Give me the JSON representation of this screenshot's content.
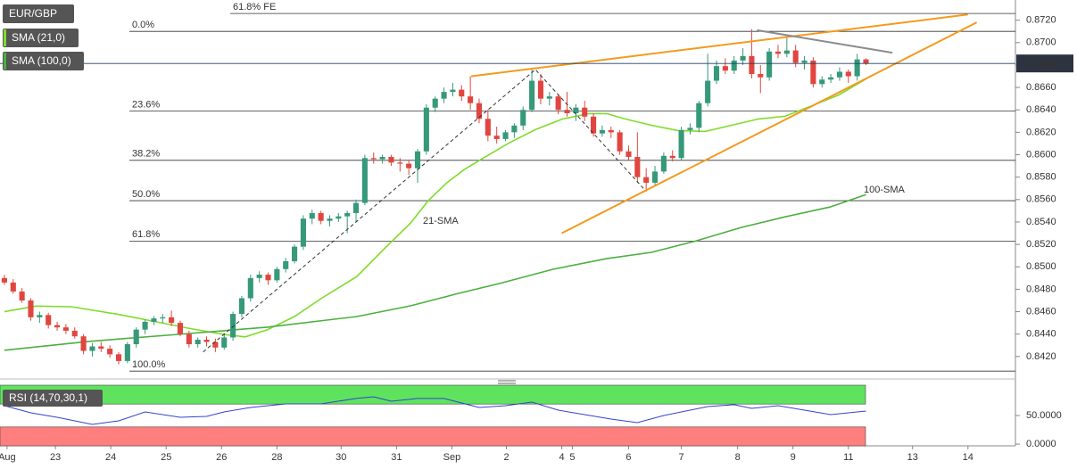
{
  "chart_data": [
    {
      "type": "candlestick",
      "title": "EUR/GBP",
      "x": [
        0,
        1,
        2,
        3,
        4,
        5,
        6,
        7,
        8,
        9,
        10,
        11,
        12,
        13,
        14,
        15,
        16,
        17,
        18,
        19,
        20,
        21,
        22,
        23,
        24,
        25,
        26,
        27,
        28,
        29,
        30,
        31,
        32,
        33,
        34,
        35,
        36,
        37,
        38,
        39,
        40,
        41,
        42,
        43,
        44,
        45,
        46,
        47,
        48,
        49,
        50,
        51,
        52,
        53,
        54,
        55,
        56,
        57,
        58,
        59,
        60,
        61,
        62,
        63,
        64,
        65,
        66,
        67,
        68,
        69,
        70,
        71,
        72,
        73,
        74,
        75,
        76,
        77,
        78,
        79,
        80,
        81,
        82,
        83,
        84,
        85,
        86,
        87,
        88,
        89,
        90,
        91,
        92,
        93,
        94,
        95,
        96,
        97,
        98
      ],
      "open": [
        0.849,
        0.8486,
        0.8478,
        0.847,
        0.8455,
        0.8457,
        0.8448,
        0.8446,
        0.8443,
        0.8438,
        0.8425,
        0.8429,
        0.8427,
        0.8422,
        0.8416,
        0.8431,
        0.8444,
        0.8451,
        0.8454,
        0.8455,
        0.845,
        0.844,
        0.8431,
        0.8435,
        0.8433,
        0.8428,
        0.8437,
        0.8458,
        0.8472,
        0.849,
        0.8493,
        0.8488,
        0.8498,
        0.8505,
        0.8518,
        0.8543,
        0.8548,
        0.8541,
        0.8543,
        0.8545,
        0.8548,
        0.8557,
        0.8597,
        0.8596,
        0.8598,
        0.8593,
        0.8592,
        0.8588,
        0.8603,
        0.8642,
        0.865,
        0.8656,
        0.8658,
        0.8652,
        0.8646,
        0.8632,
        0.8617,
        0.8614,
        0.862,
        0.8626,
        0.864,
        0.8666,
        0.865,
        0.8652,
        0.864,
        0.8637,
        0.8642,
        0.8634,
        0.8619,
        0.8622,
        0.862,
        0.8603,
        0.8598,
        0.858,
        0.8575,
        0.8585,
        0.8599,
        0.8597,
        0.8622,
        0.8624,
        0.8646,
        0.8666,
        0.8679,
        0.8675,
        0.8684,
        0.8688,
        0.8672,
        0.8669,
        0.8692,
        0.869,
        0.8693,
        0.8682,
        0.8684,
        0.8663,
        0.8667,
        0.8669,
        0.8674,
        0.867,
        0.8685
      ],
      "high": [
        0.8493,
        0.8489,
        0.8481,
        0.8472,
        0.846,
        0.8459,
        0.8451,
        0.8449,
        0.8446,
        0.844,
        0.8432,
        0.8433,
        0.843,
        0.8424,
        0.8433,
        0.8446,
        0.8453,
        0.8456,
        0.8458,
        0.8461,
        0.8452,
        0.8443,
        0.8437,
        0.8438,
        0.8436,
        0.844,
        0.846,
        0.8474,
        0.8493,
        0.8496,
        0.8495,
        0.85,
        0.8508,
        0.852,
        0.8546,
        0.8551,
        0.855,
        0.8546,
        0.8548,
        0.855,
        0.856,
        0.86,
        0.8602,
        0.86,
        0.86,
        0.8597,
        0.8595,
        0.8605,
        0.8645,
        0.8652,
        0.866,
        0.8664,
        0.8662,
        0.867,
        0.865,
        0.864,
        0.8625,
        0.8622,
        0.8628,
        0.8643,
        0.8676,
        0.8672,
        0.8656,
        0.8654,
        0.8656,
        0.8645,
        0.8648,
        0.8637,
        0.8626,
        0.8625,
        0.8622,
        0.8608,
        0.862,
        0.8588,
        0.859,
        0.8602,
        0.8604,
        0.8625,
        0.8628,
        0.8648,
        0.869,
        0.8684,
        0.8686,
        0.8688,
        0.8695,
        0.8712,
        0.868,
        0.8695,
        0.8698,
        0.8704,
        0.8698,
        0.8688,
        0.8687,
        0.867,
        0.8672,
        0.8678,
        0.8676,
        0.869,
        0.8686
      ],
      "low": [
        0.8484,
        0.8476,
        0.8468,
        0.8452,
        0.845,
        0.8445,
        0.8443,
        0.844,
        0.8436,
        0.8422,
        0.842,
        0.8424,
        0.8419,
        0.8413,
        0.8414,
        0.8428,
        0.844,
        0.8448,
        0.845,
        0.8447,
        0.8438,
        0.8428,
        0.8428,
        0.8429,
        0.8424,
        0.8426,
        0.8434,
        0.8455,
        0.8469,
        0.8486,
        0.8484,
        0.8486,
        0.8495,
        0.8503,
        0.8515,
        0.8538,
        0.8538,
        0.8536,
        0.854,
        0.853,
        0.854,
        0.8555,
        0.8592,
        0.8592,
        0.859,
        0.8585,
        0.8582,
        0.8575,
        0.86,
        0.8638,
        0.8646,
        0.8652,
        0.8648,
        0.864,
        0.8628,
        0.8612,
        0.861,
        0.8612,
        0.8615,
        0.8622,
        0.8638,
        0.8645,
        0.8644,
        0.8636,
        0.8634,
        0.863,
        0.863,
        0.8616,
        0.8616,
        0.8615,
        0.86,
        0.8595,
        0.8575,
        0.8567,
        0.8572,
        0.8583,
        0.8594,
        0.8595,
        0.8618,
        0.862,
        0.8643,
        0.8663,
        0.8672,
        0.8672,
        0.868,
        0.8668,
        0.8655,
        0.8666,
        0.8686,
        0.8687,
        0.8678,
        0.8676,
        0.866,
        0.866,
        0.8664,
        0.8666,
        0.8664,
        0.8666,
        0.868
      ],
      "close": [
        0.8486,
        0.8478,
        0.847,
        0.8455,
        0.8457,
        0.8448,
        0.8446,
        0.8443,
        0.8438,
        0.8425,
        0.8429,
        0.8427,
        0.8422,
        0.8416,
        0.8431,
        0.8444,
        0.8451,
        0.8454,
        0.8455,
        0.845,
        0.844,
        0.8431,
        0.8435,
        0.8433,
        0.8428,
        0.8437,
        0.8458,
        0.8472,
        0.849,
        0.8493,
        0.8488,
        0.8498,
        0.8505,
        0.8518,
        0.8543,
        0.8548,
        0.8541,
        0.8543,
        0.8545,
        0.8548,
        0.8557,
        0.8597,
        0.8596,
        0.8598,
        0.8593,
        0.8592,
        0.8588,
        0.8603,
        0.8642,
        0.865,
        0.8656,
        0.8658,
        0.8652,
        0.8646,
        0.8632,
        0.8617,
        0.8614,
        0.862,
        0.8626,
        0.864,
        0.8666,
        0.865,
        0.8652,
        0.864,
        0.8637,
        0.8642,
        0.8634,
        0.8619,
        0.8622,
        0.862,
        0.8603,
        0.8598,
        0.858,
        0.8575,
        0.8585,
        0.8599,
        0.8597,
        0.8622,
        0.8624,
        0.8646,
        0.8666,
        0.8679,
        0.8675,
        0.8684,
        0.8688,
        0.8672,
        0.8669,
        0.8692,
        0.869,
        0.8693,
        0.8682,
        0.8684,
        0.8663,
        0.8667,
        0.8669,
        0.8674,
        0.867,
        0.8685,
        0.86814
      ],
      "up_color": "#36997a",
      "down_color": "#e0463f",
      "series": [
        {
          "name": "SMA (21,0)",
          "color": "#7fdc2a",
          "x": [
            0,
            3.6,
            7.6,
            12.7,
            16.8,
            20.8,
            24.9,
            27.4,
            29.9,
            33,
            36,
            40.1,
            43.1,
            46.2,
            48.2,
            50.3,
            52.3,
            54.3,
            57.4,
            60.4,
            63.5,
            66.5,
            68.5,
            70.6,
            73.6,
            76.6,
            79.7,
            82.7,
            85.8,
            88.8,
            91.9,
            94.9,
            98
          ],
          "values": [
            0.846,
            0.8465,
            0.84644,
            0.8458,
            0.84517,
            0.84454,
            0.84398,
            0.84375,
            0.84438,
            0.84557,
            0.84716,
            0.84914,
            0.85152,
            0.8539,
            0.85589,
            0.85748,
            0.85867,
            0.85962,
            0.86105,
            0.86224,
            0.86319,
            0.86367,
            0.86367,
            0.86319,
            0.86263,
            0.86216,
            0.86208,
            0.86263,
            0.86319,
            0.86343,
            0.86438,
            0.86533,
            0.86676
          ]
        },
        {
          "name": "SMA (100,0)",
          "color": "#4caf3f",
          "x": [
            0,
            9.6,
            19.8,
            29.9,
            40.1,
            46.2,
            51.3,
            56.3,
            62.4,
            68.5,
            73.6,
            78.7,
            83.8,
            88.8,
            93.9,
            98
          ],
          "values": [
            0.84256,
            0.84335,
            0.84398,
            0.84462,
            0.84557,
            0.84652,
            0.84756,
            0.84851,
            0.84978,
            0.85073,
            0.85129,
            0.85232,
            0.85351,
            0.85446,
            0.85533,
            0.85644
          ]
        }
      ],
      "annotations": [
        {
          "text": "21-SMA",
          "color": "#7fdc2a"
        },
        {
          "text": "100-SMA",
          "color": "#4caf3f"
        }
      ],
      "fibonacci": [
        {
          "label": "0.0%",
          "value": 0.871
        },
        {
          "label": "23.6%",
          "value": 0.8639
        },
        {
          "label": "38.2%",
          "value": 0.8595
        },
        {
          "label": "50.0%",
          "value": 0.8559
        },
        {
          "label": "61.8%",
          "value": 0.8523
        },
        {
          "label": "100.0%",
          "value": 0.8407
        },
        {
          "label": "61.8% FE",
          "value": 0.8726
        }
      ],
      "trendlines": [
        {
          "color": "#f39a1e",
          "dashed": false,
          "x": [
            53.1,
            109.6
          ],
          "values": [
            0.867,
            0.8725
          ]
        },
        {
          "color": "#f39a1e",
          "dashed": false,
          "x": [
            63.4,
            110.6
          ],
          "values": [
            0.853,
            0.8718
          ]
        },
        {
          "color": "#8c8c8c",
          "dashed": false,
          "x": [
            85.6,
            101
          ],
          "values": [
            0.8711,
            0.8691
          ]
        },
        {
          "color": "#333333",
          "dashed": true,
          "x": [
            22.6,
            60.4,
            72.8
          ],
          "values": [
            0.8424,
            0.8676,
            0.8569
          ]
        }
      ],
      "last_price": 0.86814,
      "xlim": [
        -0.5,
        115
      ],
      "xticks": [
        {
          "value": 0.3,
          "label": "Aug"
        },
        {
          "value": 5.8,
          "label": "23"
        },
        {
          "value": 12.1,
          "label": "24"
        },
        {
          "value": 18.4,
          "label": "25"
        },
        {
          "value": 24.7,
          "label": "26"
        },
        {
          "value": 31,
          "label": "28"
        },
        {
          "value": 38.3,
          "label": "30"
        },
        {
          "value": 44.6,
          "label": "31"
        },
        {
          "value": 50.9,
          "label": "Sep"
        },
        {
          "value": 57.1,
          "label": "2"
        },
        {
          "value": 63.4,
          "label": "4"
        },
        {
          "value": 64.6,
          "label": "5"
        },
        {
          "value": 71,
          "label": "6"
        },
        {
          "value": 77,
          "label": "7"
        },
        {
          "value": 83.4,
          "label": "8"
        },
        {
          "value": 89.7,
          "label": "9"
        },
        {
          "value": 96,
          "label": "11"
        },
        {
          "value": 103.3,
          "label": "13"
        },
        {
          "value": 109.6,
          "label": "14"
        }
      ],
      "ylim": [
        0.84,
        0.8738
      ],
      "yticks": [
        {
          "value": 0.842,
          "label": "0.8420"
        },
        {
          "value": 0.844,
          "label": "0.8440"
        },
        {
          "value": 0.846,
          "label": "0.8460"
        },
        {
          "value": 0.848,
          "label": "0.8480"
        },
        {
          "value": 0.85,
          "label": "0.8500"
        },
        {
          "value": 0.852,
          "label": "0.8520"
        },
        {
          "value": 0.854,
          "label": "0.8540"
        },
        {
          "value": 0.856,
          "label": "0.8560"
        },
        {
          "value": 0.858,
          "label": "0.8580"
        },
        {
          "value": 0.86,
          "label": "0.8600"
        },
        {
          "value": 0.862,
          "label": "0.8620"
        },
        {
          "value": 0.864,
          "label": "0.8640"
        },
        {
          "value": 0.866,
          "label": "0.8660"
        },
        {
          "value": 0.868,
          "label": "0.8680"
        },
        {
          "value": 0.87,
          "label": "0.8700"
        },
        {
          "value": 0.872,
          "label": "0.8720"
        }
      ]
    },
    {
      "type": "line",
      "title": "RSI (14,70,30,1)",
      "color": "#3344cc",
      "x": [
        0,
        3,
        6,
        10,
        13,
        16,
        20,
        23,
        25,
        28,
        32,
        36,
        40,
        42,
        44,
        47,
        50,
        54,
        57,
        60,
        63,
        66,
        69,
        72,
        75,
        77,
        80,
        83,
        85,
        88,
        91,
        94,
        98
      ],
      "values": [
        67.2,
        54.7,
        46.9,
        34.4,
        40.6,
        56.3,
        46.9,
        48.4,
        56.3,
        64.1,
        70.3,
        70.3,
        79.7,
        82.8,
        75,
        79.7,
        79.7,
        64.1,
        67.2,
        73.4,
        59.4,
        51.6,
        43.8,
        37.5,
        50,
        56.3,
        65.6,
        68.8,
        62.5,
        67.2,
        59.4,
        51.6,
        57.8
      ],
      "overbought": 70,
      "oversold": 30,
      "overbought_color": "#5fe35f",
      "oversold_color": "#ff7e7e",
      "xlim": [
        -0.5,
        115
      ],
      "ylim": [
        -3,
        103
      ],
      "yticks": [
        {
          "value": 50,
          "label": "50.0000"
        },
        {
          "value": 0,
          "label": "0.0000"
        }
      ]
    }
  ]
}
